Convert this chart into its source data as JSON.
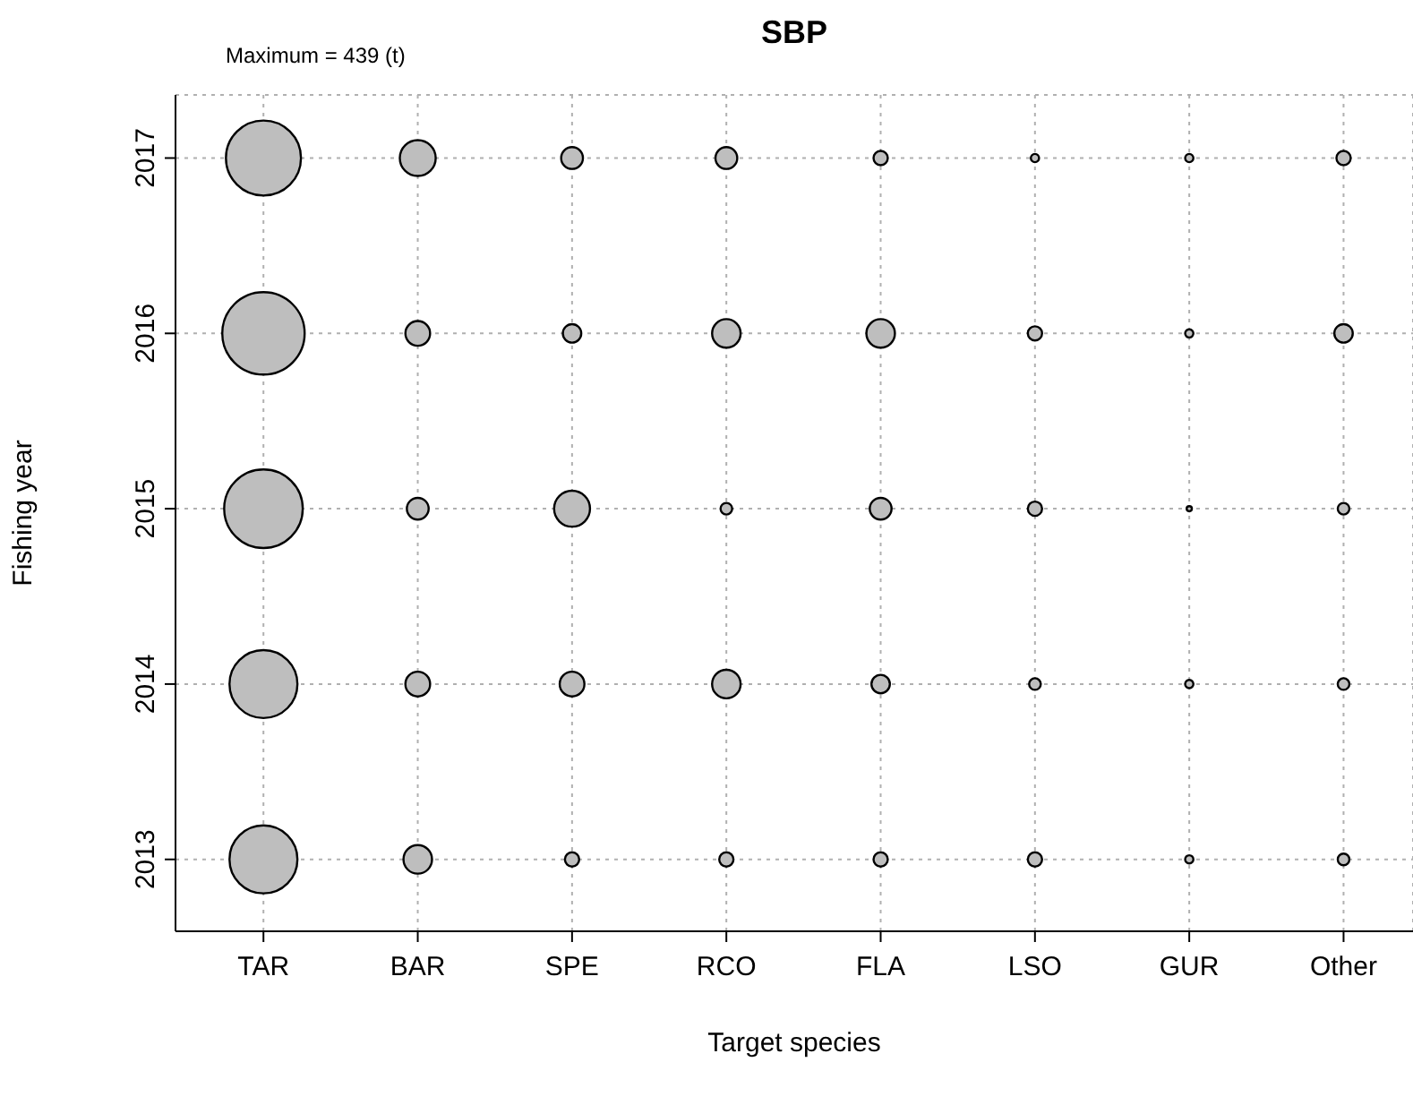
{
  "chart_data": {
    "type": "bubble",
    "title": "SBP",
    "xlabel": "Target species",
    "ylabel": "Fishing year",
    "annotations": [
      "Maximum = 439 (t)"
    ],
    "categories": [
      "TAR",
      "BAR",
      "SPE",
      "RCO",
      "FLA",
      "LSO",
      "GUR",
      "Other"
    ],
    "ylim": [
      2012.59,
      2017.36
    ],
    "yticks": [
      2013,
      2014,
      2015,
      2016,
      2017
    ],
    "grid": true,
    "line_style": "dotted",
    "series": [
      {
        "color": "#bebebe",
        "values": [
          2017,
          2017,
          2017,
          2017,
          2017,
          2017,
          2017,
          2017
        ],
        "sizes": [
          0.83,
          0.19,
          0.07,
          0.07,
          0.03,
          0.01,
          0.01,
          0.03
        ]
      },
      {
        "color": "#bebebe",
        "values": [
          2016,
          2016,
          2016,
          2016,
          2016,
          2016,
          2016,
          2016
        ],
        "sizes": [
          1,
          0.09,
          0.05,
          0.12,
          0.12,
          0.03,
          0.01,
          0.05
        ]
      },
      {
        "color": "#bebebe",
        "values": [
          2015,
          2015,
          2015,
          2015,
          2015,
          2015,
          2015,
          2015
        ],
        "sizes": [
          0.91,
          0.07,
          0.19,
          0.02,
          0.07,
          0.03,
          0.004,
          0.02
        ]
      },
      {
        "color": "#bebebe",
        "values": [
          2014,
          2014,
          2014,
          2014,
          2014,
          2014,
          2014,
          2014
        ],
        "sizes": [
          0.68,
          0.09,
          0.09,
          0.12,
          0.05,
          0.02,
          0.01,
          0.02
        ]
      },
      {
        "color": "#bebebe",
        "values": [
          2013,
          2013,
          2013,
          2013,
          2013,
          2013,
          2013,
          2013
        ],
        "sizes": [
          0.68,
          0.12,
          0.03,
          0.03,
          0.03,
          0.03,
          0.01,
          0.02
        ]
      }
    ]
  }
}
